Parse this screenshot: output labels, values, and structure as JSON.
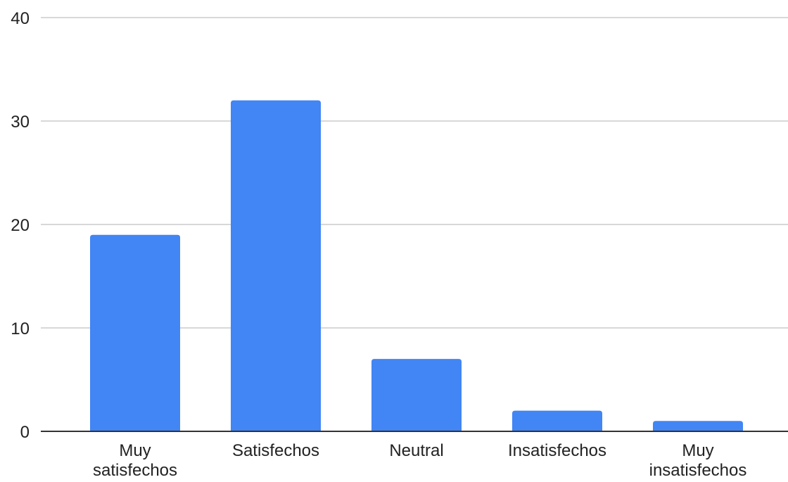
{
  "chart_data": {
    "type": "bar",
    "categories": [
      [
        "Muy",
        "satisfechos"
      ],
      [
        "Satisfechos"
      ],
      [
        "Neutral"
      ],
      [
        "Insatisfechos"
      ],
      [
        "Muy",
        "insatisfechos"
      ]
    ],
    "values": [
      19,
      32,
      7,
      2,
      1
    ],
    "ylim": [
      0,
      40
    ],
    "yticks": [
      0,
      10,
      20,
      30,
      40
    ],
    "title": "",
    "xlabel": "",
    "ylabel": "",
    "grid": true,
    "legend": "none",
    "colors": {
      "bar": "#4285f4",
      "grid": "#cccccc",
      "axis": "#333333",
      "text": "#222222"
    }
  }
}
